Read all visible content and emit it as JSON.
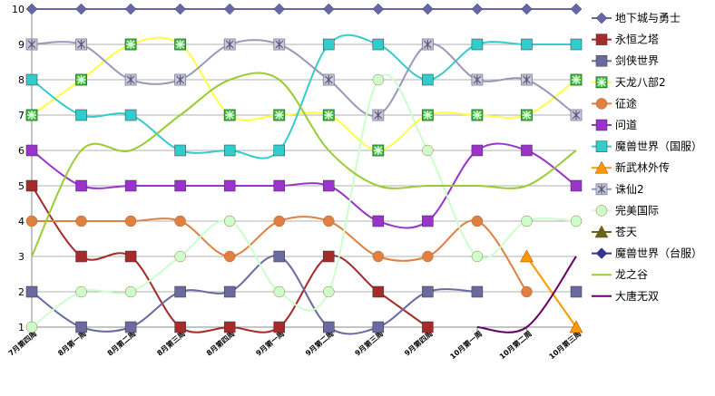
{
  "chart_data": {
    "type": "line",
    "title": "",
    "xlabel": "",
    "ylabel": "",
    "ylim": [
      1,
      10
    ],
    "yticks": [
      1,
      2,
      3,
      4,
      5,
      6,
      7,
      8,
      9,
      10
    ],
    "grid": "horizontal",
    "legend_position": "right",
    "categories": [
      "7月第四周",
      "8月第一周",
      "8月第二周",
      "8月第三周",
      "8月第四周",
      "9月第一周",
      "9月第二周",
      "9月第三周",
      "9月第四周",
      "10月第一周",
      "10月第二周",
      "10月第三周"
    ],
    "series": [
      {
        "name": "地下城与勇士",
        "color": "#6666aa",
        "marker": "diamond",
        "values": [
          10,
          10,
          10,
          10,
          10,
          10,
          10,
          10,
          10,
          10,
          10,
          10
        ]
      },
      {
        "name": "永恒之塔",
        "color": "#a52a2a",
        "marker": "square",
        "values": [
          5,
          3,
          3,
          1,
          1,
          1,
          3,
          2,
          1,
          null,
          null,
          null
        ]
      },
      {
        "name": "剑侠世界",
        "color": "#6a6aa0",
        "marker": "square",
        "values": [
          2,
          1,
          1,
          2,
          2,
          3,
          1,
          1,
          2,
          2,
          null,
          2
        ]
      },
      {
        "name": "天龙八部2",
        "color": "#ffff44",
        "marker": "star-square",
        "values": [
          7,
          8,
          9,
          9,
          7,
          7,
          7,
          6,
          7,
          7,
          7,
          8
        ]
      },
      {
        "name": "征途",
        "color": "#e08040",
        "marker": "circle",
        "values": [
          4,
          4,
          4,
          4,
          3,
          4,
          4,
          3,
          3,
          4,
          2,
          null
        ]
      },
      {
        "name": "问道",
        "color": "#9933cc",
        "marker": "square",
        "values": [
          6,
          5,
          5,
          5,
          5,
          5,
          5,
          4,
          4,
          6,
          6,
          5
        ]
      },
      {
        "name": "魔兽世界（国服）",
        "color": "#33cccc",
        "marker": "square",
        "values": [
          8,
          7,
          7,
          6,
          6,
          6,
          9,
          9,
          8,
          9,
          9,
          9
        ]
      },
      {
        "name": "新武林外传",
        "color": "#ff9900",
        "marker": "triangle",
        "values": [
          null,
          null,
          null,
          null,
          null,
          null,
          null,
          null,
          null,
          null,
          3,
          1
        ]
      },
      {
        "name": "诛仙2",
        "color": "#9999bb",
        "marker": "x-square",
        "values": [
          9,
          9,
          8,
          8,
          9,
          9,
          8,
          7,
          9,
          8,
          8,
          7
        ]
      },
      {
        "name": "完美国际",
        "color": "#ccffcc",
        "marker": "circle",
        "values": [
          1,
          2,
          2,
          3,
          4,
          2,
          2,
          8,
          6,
          3,
          4,
          4
        ]
      },
      {
        "name": "苍天",
        "color": "#66661a",
        "marker": "triangle",
        "values": [
          null,
          null,
          null,
          null,
          null,
          null,
          null,
          null,
          null,
          null,
          null,
          null
        ]
      },
      {
        "name": "魔兽世界（台服）",
        "color": "#333399",
        "marker": "diamond",
        "values": [
          null,
          null,
          null,
          null,
          null,
          null,
          null,
          null,
          null,
          null,
          null,
          null
        ]
      },
      {
        "name": "龙之谷",
        "color": "#99cc33",
        "marker": "none",
        "values": [
          3,
          6,
          6,
          7,
          8,
          8,
          6,
          5,
          5,
          5,
          5,
          6
        ]
      },
      {
        "name": "大唐无双",
        "color": "#660066",
        "marker": "none",
        "values": [
          null,
          null,
          null,
          null,
          null,
          null,
          null,
          null,
          null,
          1,
          1,
          3
        ]
      }
    ]
  }
}
